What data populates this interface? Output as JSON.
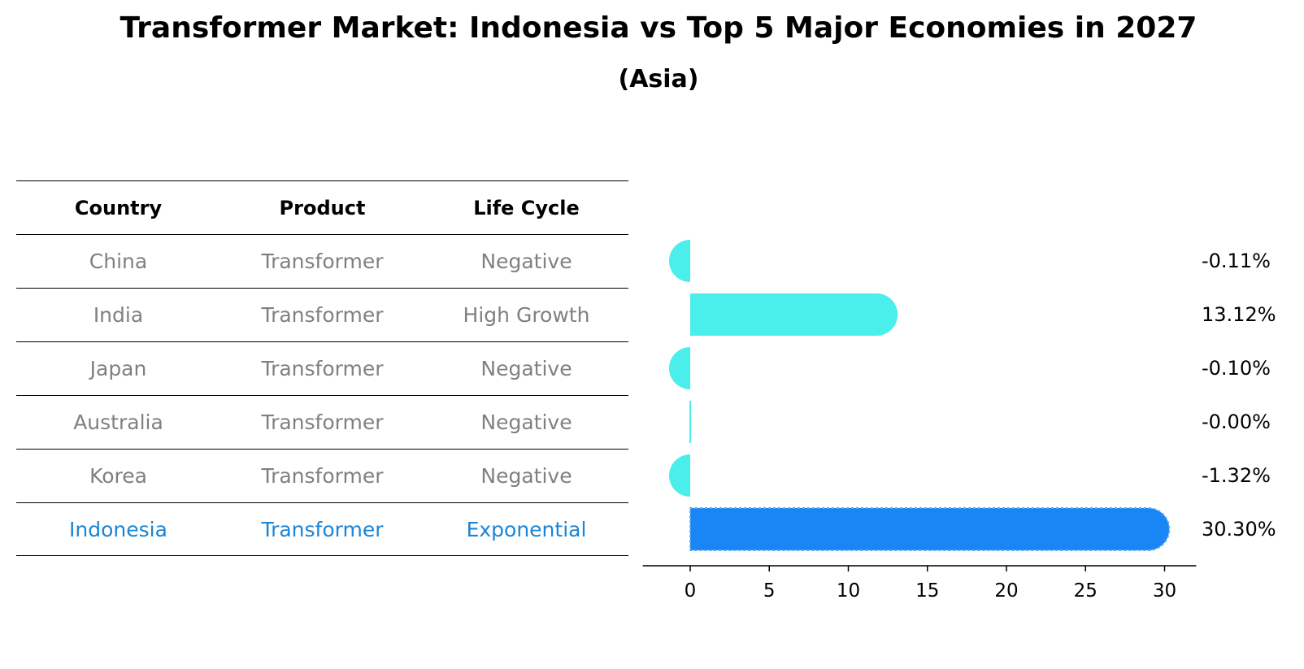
{
  "title": "Transformer Market: Indonesia vs Top 5 Major Economies in 2027",
  "subtitle": "(Asia)",
  "table": {
    "headers": [
      "Country",
      "Product",
      "Life Cycle"
    ],
    "rows": [
      {
        "country": "China",
        "product": "Transformer",
        "life_cycle": "Negative"
      },
      {
        "country": "India",
        "product": "Transformer",
        "life_cycle": "High Growth"
      },
      {
        "country": "Japan",
        "product": "Transformer",
        "life_cycle": "Negative"
      },
      {
        "country": "Australia",
        "product": "Transformer",
        "life_cycle": "Negative"
      },
      {
        "country": "Korea",
        "product": "Transformer",
        "life_cycle": "Negative"
      },
      {
        "country": "Indonesia",
        "product": "Transformer",
        "life_cycle": "Exponential"
      }
    ]
  },
  "chart_data": {
    "type": "bar",
    "orientation": "horizontal",
    "categories": [
      "China",
      "India",
      "Japan",
      "Australia",
      "Korea",
      "Indonesia"
    ],
    "values": [
      -0.11,
      13.12,
      -0.1,
      -0.0,
      -1.32,
      30.3
    ],
    "value_labels": [
      "-0.11%",
      "13.12%",
      "-0.10%",
      "-0.00%",
      "-1.32%",
      "30.30%"
    ],
    "xticks": [
      0,
      5,
      10,
      15,
      20,
      25,
      30
    ],
    "xlim": [
      -3,
      32
    ],
    "highlight": "Indonesia",
    "colors": {
      "default": "#4aeeea",
      "highlight": "#1a85f5"
    },
    "grid": false
  }
}
